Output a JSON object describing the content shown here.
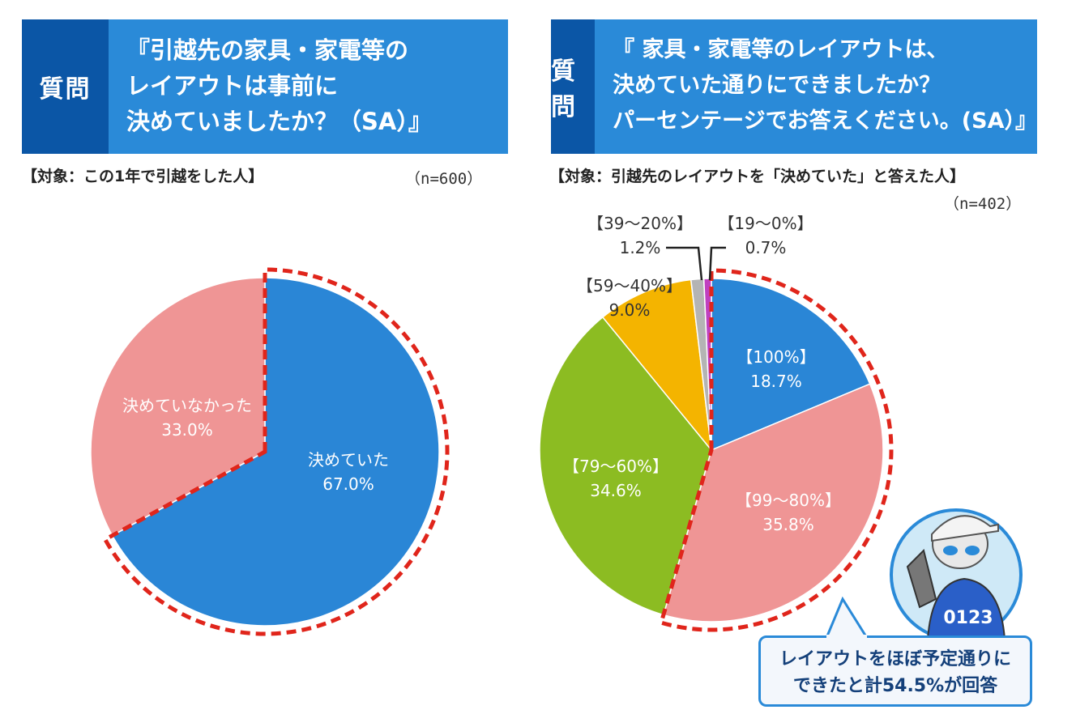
{
  "question1": {
    "label": "質問",
    "lines": [
      "『引越先の家具・家電等の",
      "レイアウトは事前に",
      "決めていましたか？（SA）』"
    ],
    "target": "【対象：この1年で引越をした人】",
    "n": "（n=600）"
  },
  "question2": {
    "label": "質問",
    "lines": [
      "『 家具・家電等のレイアウトは、",
      "決めていた通りにできましたか？",
      "パーセンテージでお答えください。(SA）』"
    ],
    "target": "【対象：引越先のレイアウトを「決めていた」と答えた人】",
    "n": "（n=402）"
  },
  "chart_data": [
    {
      "type": "pie",
      "categories": [
        "決めていた",
        "決めていなかった"
      ],
      "values": [
        67.0,
        33.0
      ],
      "value_labels": [
        "67.0%",
        "33.0%"
      ],
      "colors": [
        "#2a86d6",
        "#ef9595"
      ]
    },
    {
      "type": "pie",
      "categories": [
        "【100%】",
        "【99～80%】",
        "【79～60%】",
        "【59～40%】",
        "【39～20%】",
        "【19～0%】"
      ],
      "values": [
        18.7,
        35.8,
        34.6,
        9.0,
        1.2,
        0.7
      ],
      "value_labels": [
        "18.7%",
        "35.8%",
        "34.6%",
        "9.0%",
        "1.2%",
        "0.7%"
      ],
      "colors": [
        "#2a86d6",
        "#ef9595",
        "#8cbc22",
        "#f4b400",
        "#b4b4b4",
        "#c040c0"
      ]
    }
  ],
  "callout": {
    "lines": [
      "レイアウトをほぼ予定通りに",
      "できたと計54.5%が回答"
    ]
  },
  "mascot_badge": "0123"
}
